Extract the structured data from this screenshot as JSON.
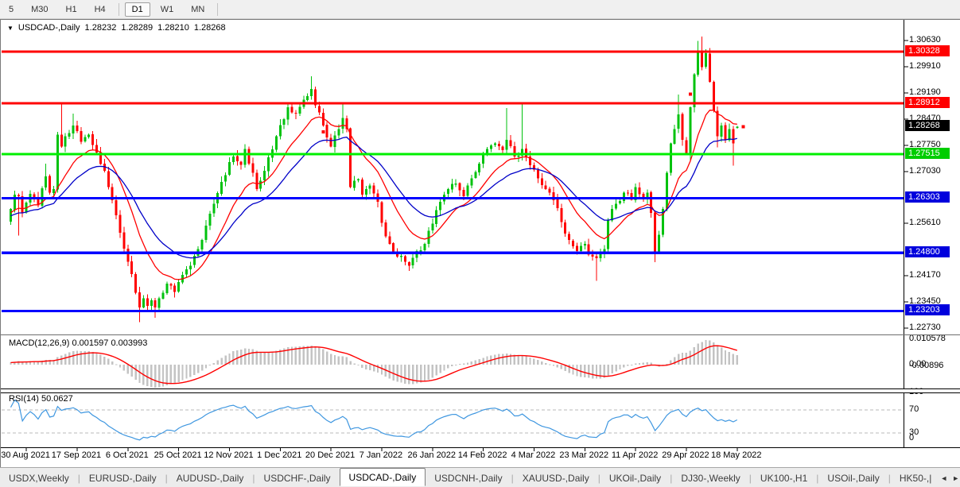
{
  "toolbar": {
    "timeframes": [
      {
        "label": "5",
        "active": false
      },
      {
        "label": "M30",
        "active": false
      },
      {
        "label": "H1",
        "active": false
      },
      {
        "label": "H4",
        "active": false
      },
      {
        "type": "sep"
      },
      {
        "label": "D1",
        "active": true
      },
      {
        "label": "W1",
        "active": false
      },
      {
        "label": "MN",
        "active": false
      },
      {
        "type": "sep"
      }
    ]
  },
  "chart_title": {
    "dropdown_icon": "▼",
    "symbol": "USDCAD-,Daily",
    "open": "1.28232",
    "high": "1.28289",
    "low": "1.28210",
    "close": "1.28268"
  },
  "indicators": {
    "macd_label": "MACD(12,26,9)",
    "macd_main": "0.001597",
    "macd_signal": "0.003993",
    "rsi_label": "RSI(14)",
    "rsi_value": "50.0627"
  },
  "axes": {
    "price_ticks": [
      "1.30630",
      "1.29910",
      "1.29190",
      "1.28470",
      "1.27750",
      "1.27030",
      "1.25610",
      "1.24170",
      "1.23450",
      "1.22730"
    ],
    "price_badges": [
      {
        "value": "1.30328",
        "color": "#ff0000"
      },
      {
        "value": "1.28912",
        "color": "#ff0000"
      },
      {
        "value": "1.28268",
        "color": "#000000"
      },
      {
        "value": "1.27515",
        "color": "#00cd00"
      },
      {
        "value": "1.26303",
        "color": "#0000dd"
      },
      {
        "value": "1.24800",
        "color": "#0000dd"
      },
      {
        "value": "1.23203",
        "color": "#0000dd"
      }
    ],
    "macd_ticks": [
      {
        "label": "0.010578",
        "v": 0.010578
      },
      {
        "label": "0.00",
        "v": 0
      },
      {
        "label": "-0.00896",
        "v": -0.00896
      }
    ],
    "rsi_ticks": [
      {
        "label": "100",
        "v": 100
      },
      {
        "label": "70",
        "v": 70
      },
      {
        "label": "30",
        "v": 30
      },
      {
        "label": "0",
        "v": 0
      }
    ],
    "date_labels": [
      {
        "i": 4,
        "label": "30 Aug 2021"
      },
      {
        "i": 17,
        "label": "17 Sep 2021"
      },
      {
        "i": 30,
        "label": "6 Oct 2021"
      },
      {
        "i": 43,
        "label": "25 Oct 2021"
      },
      {
        "i": 56,
        "label": "12 Nov 2021"
      },
      {
        "i": 69,
        "label": "1 Dec 2021"
      },
      {
        "i": 82,
        "label": "20 Dec 2021"
      },
      {
        "i": 95,
        "label": "7 Jan 2022"
      },
      {
        "i": 108,
        "label": "26 Jan 2022"
      },
      {
        "i": 121,
        "label": "14 Feb 2022"
      },
      {
        "i": 134,
        "label": "4 Mar 2022"
      },
      {
        "i": 147,
        "label": "23 Mar 2022"
      },
      {
        "i": 160,
        "label": "11 Apr 2022"
      },
      {
        "i": 173,
        "label": "29 Apr 2022"
      },
      {
        "i": 186,
        "label": "18 May 2022"
      }
    ]
  },
  "tabs": {
    "items": [
      {
        "label": "USDX,Weekly",
        "active": false
      },
      {
        "label": "EURUSD-,Daily",
        "active": false
      },
      {
        "label": "AUDUSD-,Daily",
        "active": false
      },
      {
        "label": "USDCHF-,Daily",
        "active": false
      },
      {
        "label": "USDCAD-,Daily",
        "active": true
      },
      {
        "label": "USDCNH-,Daily",
        "active": false
      },
      {
        "label": "XAUUSD-,Daily",
        "active": false
      },
      {
        "label": "UKOil-,Daily",
        "active": false
      },
      {
        "label": "DJ30-,Weekly",
        "active": false
      },
      {
        "label": "UK100-,H1",
        "active": false
      },
      {
        "label": "USOil-,Daily",
        "active": false
      },
      {
        "label": "HK50-,|",
        "active": false
      }
    ],
    "scroll_left": "◄",
    "scroll_right": "►"
  },
  "chart_data": {
    "type": "candlestick",
    "symbol": "USDCAD",
    "timeframe": "Daily",
    "current_ohlc": {
      "open": 1.28232,
      "high": 1.28289,
      "low": 1.2821,
      "close": 1.28268
    },
    "bars": 187,
    "seed": 20220518,
    "up_color": "#00c20e",
    "down_color": "#ff0000",
    "anchors": [
      [
        0,
        1.26
      ],
      [
        1,
        1.264
      ],
      [
        2,
        1.2635
      ],
      [
        3,
        1.259
      ],
      [
        5,
        1.2642
      ],
      [
        7,
        1.261
      ],
      [
        9,
        1.269
      ],
      [
        10,
        1.2645
      ],
      [
        11,
        1.2655
      ],
      [
        12,
        1.2805
      ],
      [
        13,
        1.2772
      ],
      [
        14,
        1.28
      ],
      [
        16,
        1.283
      ],
      [
        18,
        1.2785
      ],
      [
        20,
        1.2805
      ],
      [
        22,
        1.2755
      ],
      [
        24,
        1.2705
      ],
      [
        26,
        1.2625
      ],
      [
        28,
        1.2535
      ],
      [
        30,
        1.2455
      ],
      [
        32,
        1.237
      ],
      [
        33,
        1.233
      ],
      [
        34,
        1.2355
      ],
      [
        35,
        1.2335
      ],
      [
        36,
        1.235
      ],
      [
        37,
        1.233
      ],
      [
        38,
        1.2355
      ],
      [
        40,
        1.2395
      ],
      [
        42,
        1.2372
      ],
      [
        44,
        1.242
      ],
      [
        46,
        1.2445
      ],
      [
        48,
        1.249
      ],
      [
        50,
        1.2555
      ],
      [
        52,
        1.2615
      ],
      [
        54,
        1.2675
      ],
      [
        57,
        1.2745
      ],
      [
        59,
        1.2722
      ],
      [
        60,
        1.2765
      ],
      [
        62,
        1.27
      ],
      [
        63,
        1.2655
      ],
      [
        65,
        1.2705
      ],
      [
        68,
        1.28
      ],
      [
        71,
        1.288
      ],
      [
        73,
        1.2862
      ],
      [
        75,
        1.29
      ],
      [
        77,
        1.293
      ],
      [
        78,
        1.2885
      ],
      [
        80,
        1.283
      ],
      [
        82,
        1.2772
      ],
      [
        84,
        1.282
      ],
      [
        85,
        1.285
      ],
      [
        86,
        1.282
      ],
      [
        87,
        1.266
      ],
      [
        89,
        1.2682
      ],
      [
        90,
        1.264
      ],
      [
        92,
        1.2665
      ],
      [
        94,
        1.262
      ],
      [
        95,
        1.2562
      ],
      [
        97,
        1.2505
      ],
      [
        99,
        1.247
      ],
      [
        101,
        1.2455
      ],
      [
        102,
        1.2445
      ],
      [
        104,
        1.2485
      ],
      [
        106,
        1.2505
      ],
      [
        108,
        1.256
      ],
      [
        110,
        1.262
      ],
      [
        112,
        1.2655
      ],
      [
        114,
        1.267
      ],
      [
        116,
        1.2635
      ],
      [
        118,
        1.2685
      ],
      [
        120,
        1.2725
      ],
      [
        122,
        1.2765
      ],
      [
        124,
        1.278
      ],
      [
        126,
        1.2762
      ],
      [
        127,
        1.279
      ],
      [
        129,
        1.2745
      ],
      [
        131,
        1.2765
      ],
      [
        133,
        1.272
      ],
      [
        135,
        1.2685
      ],
      [
        137,
        1.2655
      ],
      [
        139,
        1.2625
      ],
      [
        141,
        1.2565
      ],
      [
        143,
        1.2515
      ],
      [
        145,
        1.2485
      ],
      [
        147,
        1.2505
      ],
      [
        148,
        1.2475
      ],
      [
        150,
        1.2465
      ],
      [
        152,
        1.249
      ],
      [
        153,
        1.257
      ],
      [
        155,
        1.2615
      ],
      [
        157,
        1.2645
      ],
      [
        159,
        1.2625
      ],
      [
        160,
        1.266
      ],
      [
        162,
        1.263
      ],
      [
        163,
        1.2645
      ],
      [
        164,
        1.259
      ],
      [
        165,
        1.2482
      ],
      [
        166,
        1.253
      ],
      [
        167,
        1.26
      ],
      [
        168,
        1.27
      ],
      [
        169,
        1.278
      ],
      [
        170,
        1.282
      ],
      [
        171,
        1.286
      ],
      [
        172,
        1.279
      ],
      [
        173,
        1.275
      ],
      [
        174,
        1.288
      ],
      [
        175,
        1.297
      ],
      [
        176,
        1.3035
      ],
      [
        177,
        1.299
      ],
      [
        178,
        1.3028
      ],
      [
        179,
        1.295
      ],
      [
        180,
        1.287
      ],
      [
        181,
        1.28
      ],
      [
        182,
        1.283
      ],
      [
        183,
        1.279
      ],
      [
        184,
        1.282
      ],
      [
        185,
        1.278
      ],
      [
        186,
        1.28268
      ]
    ],
    "wick_highs": {
      "9": 1.2725,
      "13": 1.2891,
      "16": 1.2862,
      "77": 1.2965,
      "85": 1.2892,
      "127": 1.2878,
      "131": 1.289,
      "171": 1.2915,
      "176": 1.3062,
      "177": 1.3074
    },
    "wick_lows": {
      "2": 1.2528,
      "33": 1.229,
      "37": 1.2302,
      "102": 1.243,
      "150": 1.2403,
      "165": 1.2455,
      "181": 1.277,
      "185": 1.272
    },
    "hlines": [
      {
        "price": 1.30328,
        "color": "#ff0000"
      },
      {
        "price": 1.28912,
        "color": "#ff0000"
      },
      {
        "price": 1.27515,
        "color": "#00ef00"
      },
      {
        "price": 1.26303,
        "color": "#0000ff"
      },
      {
        "price": 1.248,
        "color": "#0000ff"
      },
      {
        "price": 1.23203,
        "color": "#0000ff"
      }
    ],
    "moving_averages": [
      {
        "period": 13,
        "color": "#ff0000"
      },
      {
        "period": 26,
        "color": "#0000c8"
      }
    ],
    "macd": {
      "fast": 12,
      "slow": 26,
      "signal": 9,
      "main_value": 0.001597,
      "signal_value": 0.003993,
      "hist_color": "#c3c3c3",
      "line_color": "#ff0000",
      "axis_max": 0.010578,
      "axis_min": -0.00896
    },
    "rsi": {
      "period": 14,
      "value": 50.0627,
      "color": "#3f97e0",
      "levels": [
        70,
        30
      ],
      "axis": [
        0,
        100
      ]
    },
    "markers": [
      {
        "i": 80,
        "price": 1.2812
      },
      {
        "i": 174,
        "price": 1.2916
      },
      {
        "i": 187.6,
        "price": 1.28268
      }
    ],
    "price_axis_top": "1.30630"
  }
}
